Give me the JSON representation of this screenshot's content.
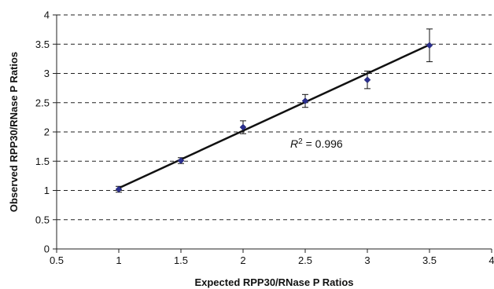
{
  "chart_data": {
    "type": "scatter",
    "xlabel": "Expected RPP30/RNase P Ratios",
    "ylabel": "Observed RPP30/RNase P Ratios",
    "xlim": [
      0.5,
      4
    ],
    "ylim": [
      0,
      4
    ],
    "x_ticks": [
      0.5,
      1,
      1.5,
      2,
      2.5,
      3,
      3.5,
      4
    ],
    "y_ticks": [
      0,
      0.5,
      1,
      1.5,
      2,
      2.5,
      3,
      3.5,
      4
    ],
    "x_tick_labels": [
      "0.5",
      "1",
      "1.5",
      "2",
      "2.5",
      "3",
      "3.5",
      "4"
    ],
    "y_tick_labels": [
      "0",
      "0.5",
      "1",
      "1.5",
      "2",
      "2.5",
      "3",
      "3.5",
      "4"
    ],
    "grid": "horizontal dashed",
    "marker_color": "#2b2f8f",
    "series": [
      {
        "points": [
          {
            "x": 1.0,
            "y": 1.02,
            "err": 0.05
          },
          {
            "x": 1.5,
            "y": 1.51,
            "err": 0.05
          },
          {
            "x": 2.0,
            "y": 2.08,
            "err": 0.11
          },
          {
            "x": 2.5,
            "y": 2.53,
            "err": 0.11
          },
          {
            "x": 3.0,
            "y": 2.89,
            "err": 0.15
          },
          {
            "x": 3.5,
            "y": 3.48,
            "err": 0.28
          }
        ]
      }
    ],
    "trendline": {
      "x": [
        1.0,
        3.5
      ],
      "y": [
        1.04,
        3.49
      ],
      "color": "#111111"
    },
    "annotation": {
      "r": "R",
      "sup": "2",
      "rest": " = 0.996",
      "x": 2.38,
      "y": 1.8
    }
  }
}
